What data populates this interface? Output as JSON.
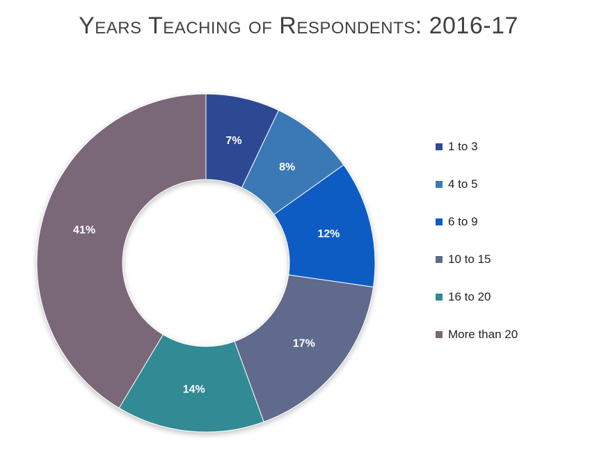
{
  "chart_data": {
    "type": "pie",
    "variant": "donut",
    "title": "Years Teaching of Respondents: 2016-17",
    "legend_position": "right",
    "slices": [
      {
        "label": "1 to 3",
        "value": 7,
        "display": "7%",
        "color": "#2E4A93"
      },
      {
        "label": "4 to 5",
        "value": 8,
        "display": "8%",
        "color": "#3A78B6"
      },
      {
        "label": "6 to 9",
        "value": 12,
        "display": "12%",
        "color": "#0D5BC4"
      },
      {
        "label": "10 to 15",
        "value": 17,
        "display": "17%",
        "color": "#5E6B8C"
      },
      {
        "label": "16 to 20",
        "value": 14,
        "display": "14%",
        "color": "#318A94"
      },
      {
        "label": "More than 20",
        "value": 41,
        "display": "41%",
        "color": "#7A6878"
      }
    ]
  }
}
